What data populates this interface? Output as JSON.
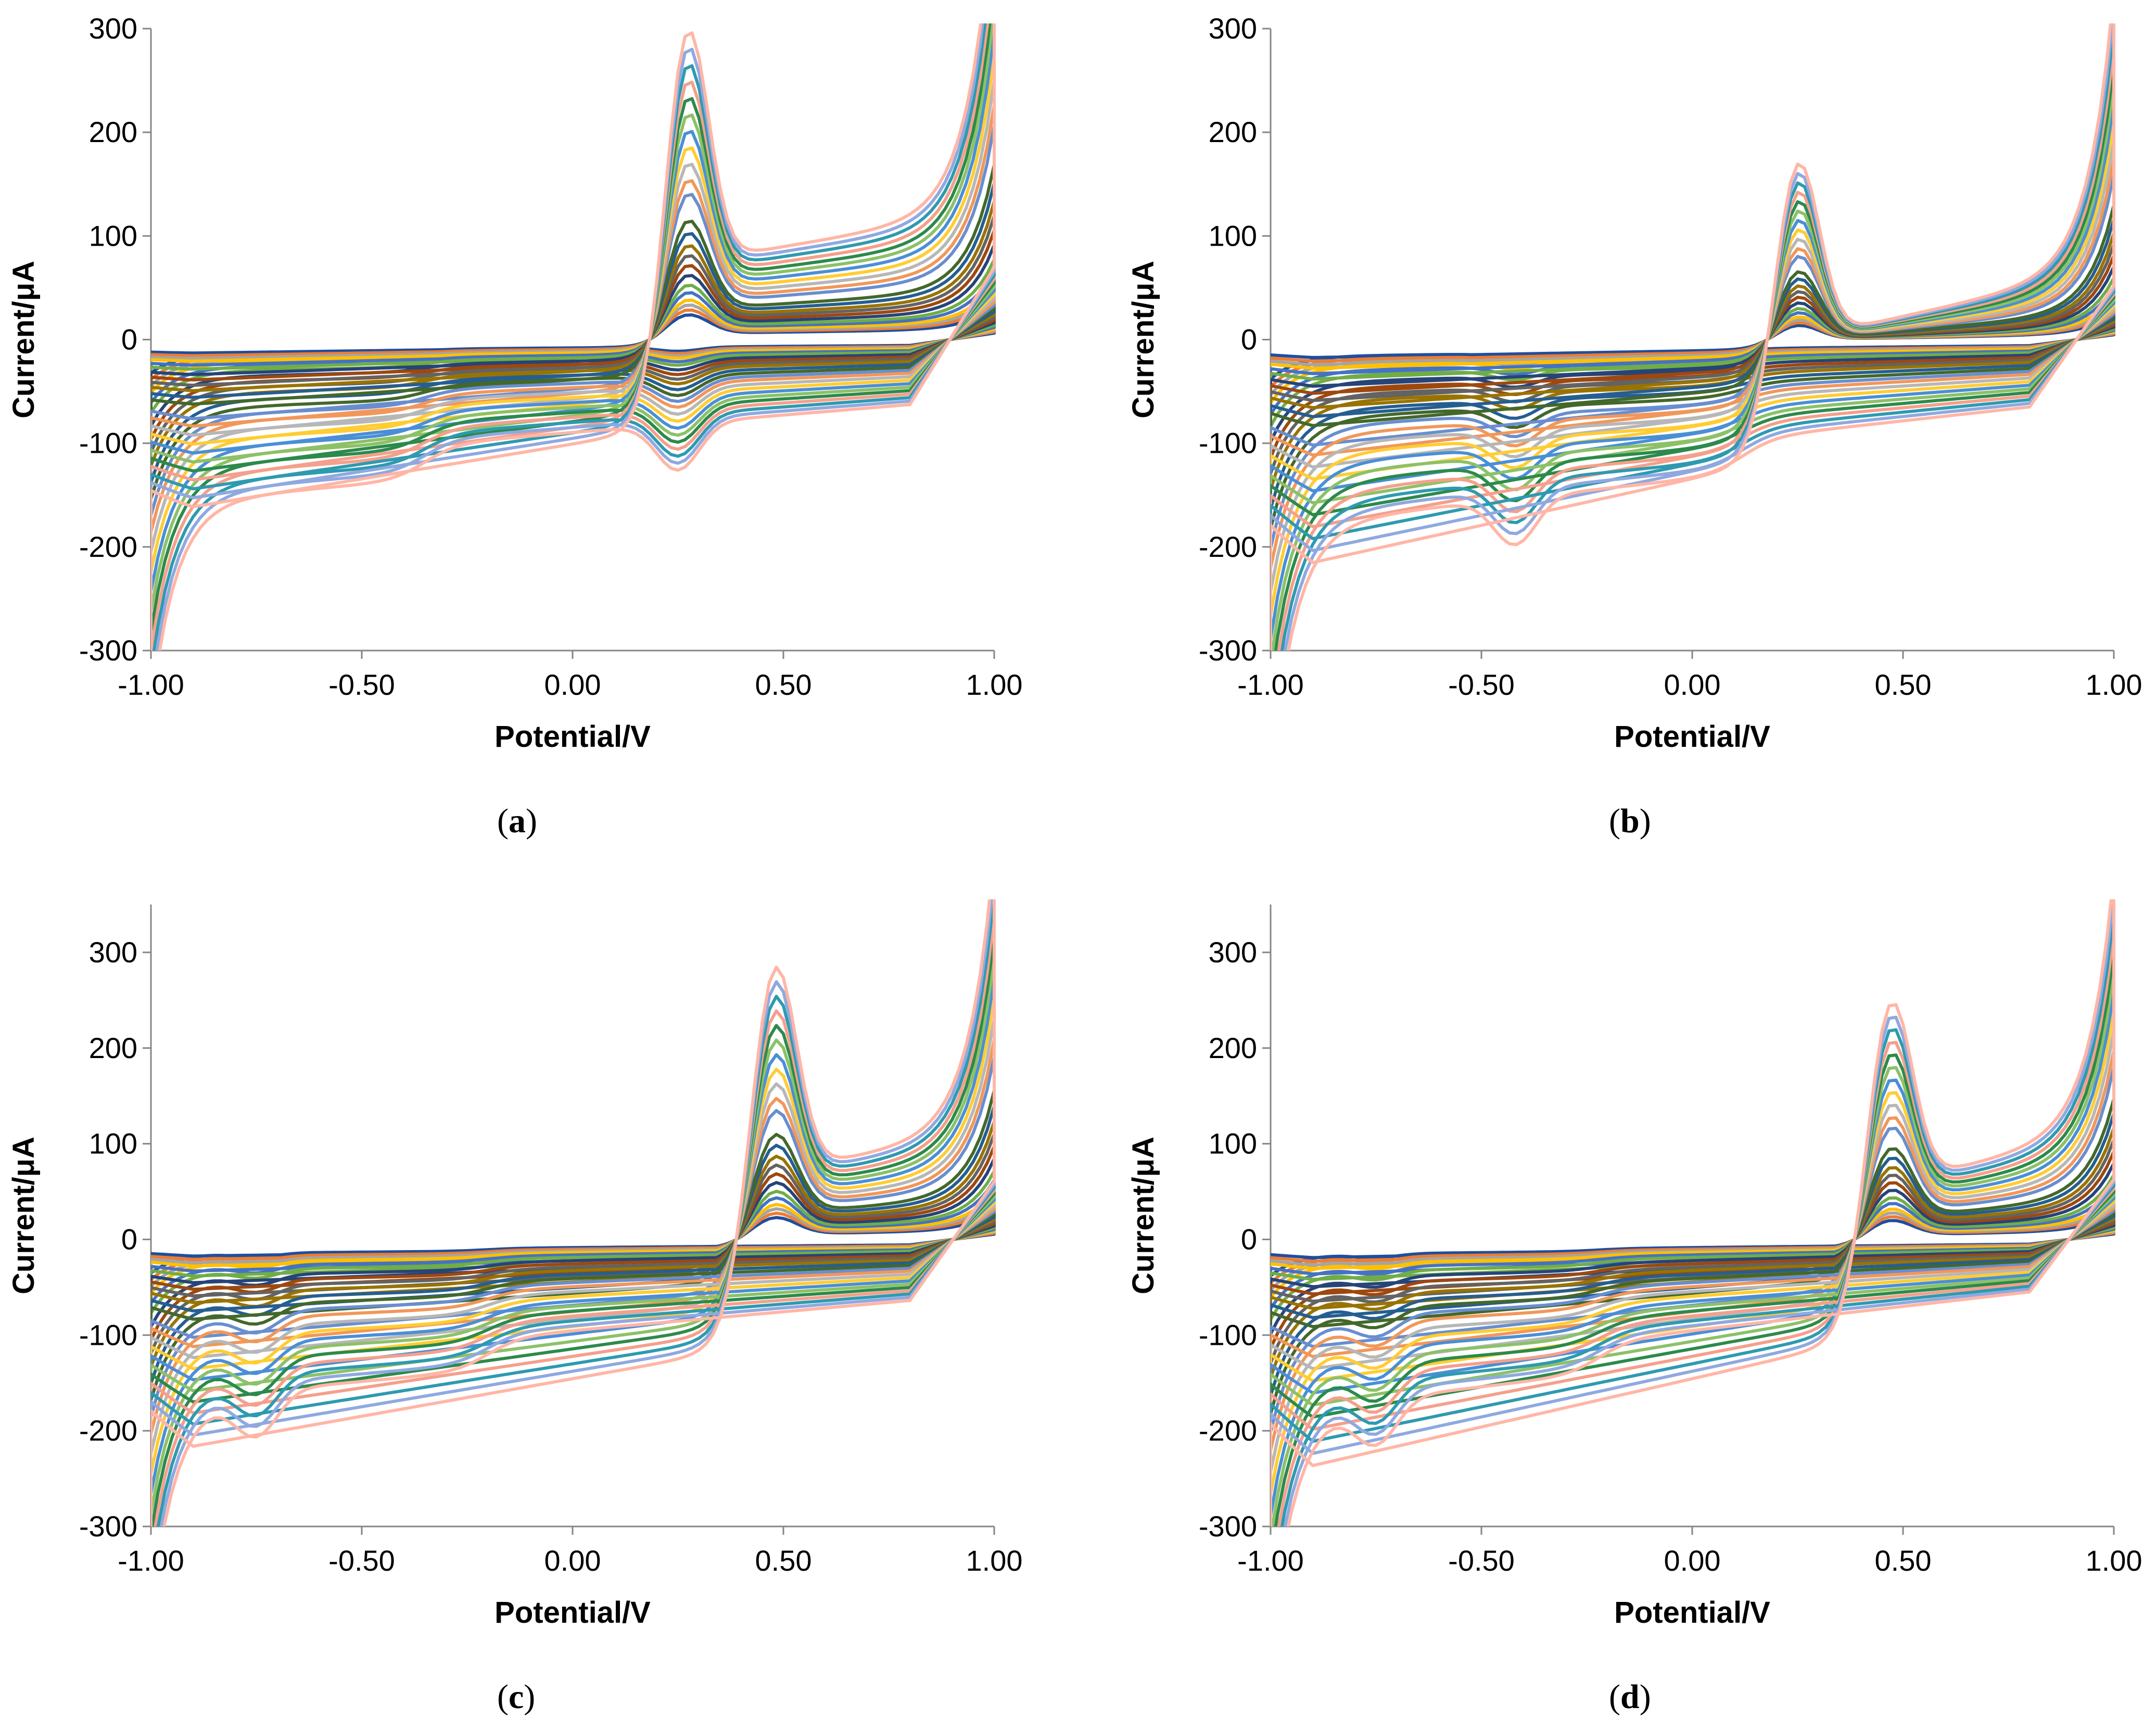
{
  "colors": [
    "#1f4e9e",
    "#ed7d31",
    "#a5a5a5",
    "#ffc000",
    "#4472c4",
    "#70ad47",
    "#264478",
    "#9e480e",
    "#636363",
    "#997300",
    "#255e91",
    "#43682b",
    "#698ed0",
    "#f1975a",
    "#b7b7b7",
    "#ffcd33",
    "#4a8fd6",
    "#8cc168",
    "#2c8a4b",
    "#f4a08c",
    "#2e9ab0",
    "#8fa9e0",
    "#ffb6a6"
  ],
  "panels": [
    {
      "label_open": "(",
      "label_letter": "a",
      "label_close": ")",
      "chart_data": {
        "type": "line",
        "xlabel": "Potential/V",
        "ylabel": "Current/μA",
        "xlim": [
          -1.0,
          1.0
        ],
        "ylim": [
          -300,
          300
        ],
        "xticks": [
          "-1.00",
          "-0.50",
          "0.00",
          "0.50",
          "1.00"
        ],
        "yticks": [
          "-300",
          "-200",
          "-100",
          "0",
          "100",
          "200",
          "300"
        ],
        "grid": false,
        "legend": "none",
        "series_count": 23,
        "base": {
          "start": -15,
          "c_slope": 6,
          "anodic_peak_x": 0.27,
          "anodic_peak_height": 22,
          "anodic_onset": 0.22,
          "anodic_plateau": 14,
          "end_anodic": 28,
          "cathodic_offset": -8,
          "cathodic_peak_x": 0.25,
          "cathodic_step_x": -0.35,
          "end_cathodic": -18
        },
        "scale_factors": [
          1.0,
          1.2,
          1.4,
          1.6,
          1.9,
          2.2,
          2.6,
          3.0,
          3.4,
          3.8,
          4.3,
          4.8,
          5.3,
          5.8,
          6.4,
          7.0,
          7.6,
          8.2,
          8.8,
          9.4,
          10.0,
          10.6,
          11.2
        ]
      }
    },
    {
      "label_open": "(",
      "label_letter": "b",
      "label_close": ")",
      "chart_data": {
        "type": "line",
        "xlabel": "Potential/V",
        "ylabel": "Current/μA",
        "xlim": [
          -1.0,
          1.0
        ],
        "ylim": [
          -300,
          300
        ],
        "xticks": [
          "-1.00",
          "-0.50",
          "0.00",
          "0.50",
          "1.00"
        ],
        "yticks": [
          "-300",
          "-200",
          "-100",
          "0",
          "100",
          "200",
          "300"
        ],
        "grid": false,
        "legend": "none",
        "series_count": 23,
        "base": {
          "start": -20,
          "c_slope": 8,
          "anodic_peak_x": 0.25,
          "anodic_peak_height": 16,
          "anodic_onset": 0.18,
          "anodic_plateau": 10,
          "end_anodic": 24,
          "cathodic_offset": -10,
          "cathodic_peak_x": -0.42,
          "cathodic_step_x": 0.12,
          "end_cathodic": -22
        },
        "scale_factors": [
          1.0,
          1.2,
          1.4,
          1.6,
          1.9,
          2.2,
          2.6,
          3.0,
          3.4,
          3.8,
          4.3,
          4.8,
          5.3,
          5.8,
          6.4,
          7.0,
          7.6,
          8.2,
          8.8,
          9.4,
          10.0,
          10.6,
          11.2
        ]
      }
    },
    {
      "label_open": "(",
      "label_letter": "c",
      "label_close": ")",
      "chart_data": {
        "type": "line",
        "xlabel": "Potential/V",
        "ylabel": "Current/μA",
        "xlim": [
          -1.0,
          1.0
        ],
        "ylim": [
          -300,
          350
        ],
        "xticks": [
          "-1.00",
          "-0.50",
          "0.00",
          "0.50",
          "1.00"
        ],
        "yticks": [
          "-300",
          "-200",
          "-100",
          "0",
          "100",
          "200",
          "300"
        ],
        "grid": false,
        "legend": "none",
        "series_count": 23,
        "base": {
          "start": -20,
          "c_slope": 7,
          "anodic_peak_x": 0.48,
          "anodic_peak_height": 20,
          "anodic_onset": 0.4,
          "anodic_plateau": 16,
          "end_anodic": 26,
          "cathodic_offset": -9,
          "cathodic_peak_x": -0.75,
          "cathodic_step_x": -0.2,
          "end_cathodic": -20
        },
        "scale_factors": [
          1.0,
          1.2,
          1.4,
          1.6,
          1.9,
          2.2,
          2.6,
          3.0,
          3.4,
          3.8,
          4.3,
          4.8,
          5.3,
          5.8,
          6.4,
          7.0,
          7.6,
          8.2,
          8.8,
          9.4,
          10.0,
          10.6,
          11.2
        ]
      }
    },
    {
      "label_open": "(",
      "label_letter": "d",
      "label_close": ")",
      "chart_data": {
        "type": "line",
        "xlabel": "Potential/V",
        "ylabel": "Current/μA",
        "xlim": [
          -1.0,
          1.0
        ],
        "ylim": [
          -300,
          350
        ],
        "xticks": [
          "-1.00",
          "-0.50",
          "0.00",
          "0.50",
          "1.00"
        ],
        "yticks": [
          "-300",
          "-200",
          "-100",
          "0",
          "100",
          "200",
          "300"
        ],
        "grid": false,
        "legend": "none",
        "series_count": 23,
        "base": {
          "start": -22,
          "c_slope": 9,
          "anodic_peak_x": 0.47,
          "anodic_peak_height": 18,
          "anodic_onset": 0.4,
          "anodic_plateau": 14,
          "end_anodic": 24,
          "cathodic_offset": -10,
          "cathodic_peak_x": -0.75,
          "cathodic_step_x": -0.22,
          "end_cathodic": -22
        },
        "scale_factors": [
          1.0,
          1.2,
          1.4,
          1.6,
          1.9,
          2.2,
          2.6,
          3.0,
          3.4,
          3.8,
          4.3,
          4.8,
          5.3,
          5.8,
          6.4,
          7.0,
          7.6,
          8.2,
          8.8,
          9.4,
          10.0,
          10.6,
          11.2
        ]
      }
    }
  ]
}
